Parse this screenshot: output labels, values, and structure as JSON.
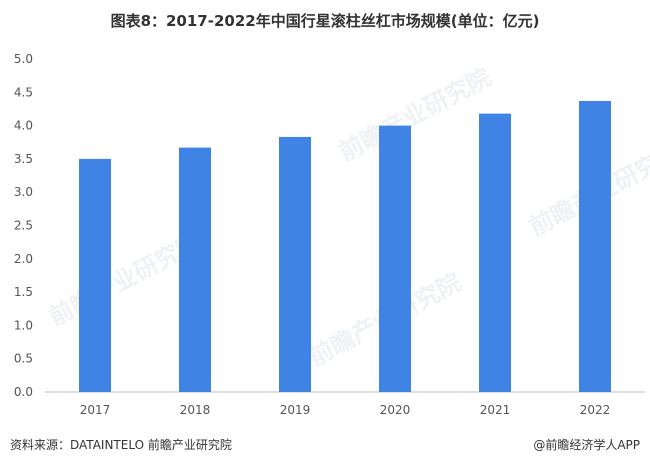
{
  "title": "图表8：2017-2022年中国行星滚柱丝杠市场规模(单位：亿元)",
  "footer": {
    "source": "资料来源：DATAINTELO 前瞻产业研究院",
    "brand": "@前瞻经济学人APP"
  },
  "watermark": "前瞻产业研究院",
  "chart_data": {
    "type": "bar",
    "title": "图表8：2017-2022年中国行星滚柱丝杠市场规模(单位：亿元)",
    "categories": [
      "2017",
      "2018",
      "2019",
      "2020",
      "2021",
      "2022"
    ],
    "values": [
      3.5,
      3.67,
      3.83,
      4.0,
      4.18,
      4.37
    ],
    "ylim": [
      0,
      5
    ],
    "yticks": [
      "0.0",
      "0.5",
      "1.0",
      "1.5",
      "2.0",
      "2.5",
      "3.0",
      "3.5",
      "4.0",
      "4.5",
      "5.0"
    ],
    "grid": false,
    "bar_color": "#3f84e5",
    "axis_color": "#bfbfbf"
  }
}
